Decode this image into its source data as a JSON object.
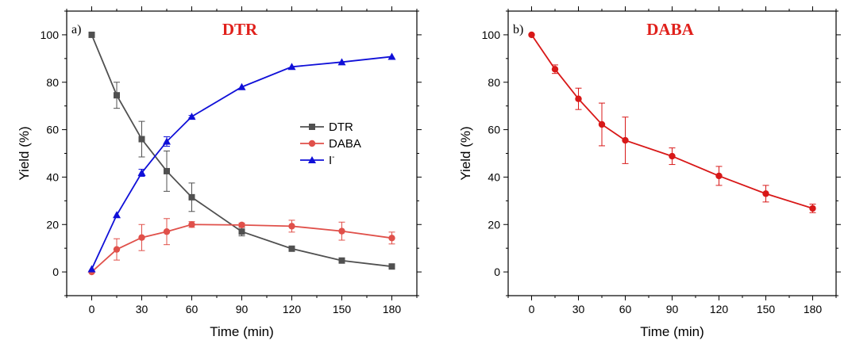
{
  "chart_data": [
    {
      "type": "line",
      "panel_label": "a)",
      "title": "DTR",
      "title_color": "#e0201b",
      "xlabel": "Time (min)",
      "ylabel": "Yield (%)",
      "xlim": [
        -15,
        195
      ],
      "ylim": [
        -10,
        110
      ],
      "xticks": [
        0,
        30,
        60,
        90,
        120,
        150,
        180
      ],
      "xtick_labels": [
        "0",
        "30",
        "60",
        "90",
        "120",
        "150",
        "180"
      ],
      "yticks": [
        0,
        20,
        40,
        60,
        80,
        100
      ],
      "ytick_labels": [
        "0",
        "20",
        "40",
        "60",
        "80",
        "100"
      ],
      "grid": false,
      "legend_position": "center-right",
      "x": [
        0,
        15,
        30,
        45,
        60,
        90,
        120,
        150,
        180
      ],
      "series": [
        {
          "name": "DTR",
          "color": "#505050",
          "marker": "square",
          "values": [
            100,
            74.5,
            56,
            42.5,
            31.5,
            17,
            9.8,
            4.8,
            2.3
          ],
          "errors": [
            0,
            5.5,
            7.5,
            8.5,
            6,
            1.8,
            0,
            0,
            0
          ]
        },
        {
          "name": "DABA",
          "color": "#e0504a",
          "marker": "circle",
          "values": [
            0,
            9.5,
            14.5,
            17,
            20,
            19.8,
            19.3,
            17.2,
            14.3
          ],
          "errors": [
            0,
            4.5,
            5.5,
            5.5,
            1.2,
            0.8,
            2.5,
            3.8,
            2.5
          ]
        },
        {
          "name": "I",
          "name_superscript": "-",
          "color": "#1010d8",
          "marker": "triangle",
          "values": [
            1.2,
            24,
            41.8,
            55,
            65.5,
            78,
            86.5,
            88.5,
            90.8
          ],
          "errors": [
            0,
            0,
            1.5,
            2,
            0.5,
            0,
            0,
            0,
            0
          ]
        }
      ]
    },
    {
      "type": "line",
      "panel_label": "b)",
      "title": "DABA",
      "title_color": "#e0201b",
      "xlabel": "Time (min)",
      "ylabel": "Yield (%)",
      "xlim": [
        -15,
        195
      ],
      "ylim": [
        -10,
        110
      ],
      "xticks": [
        0,
        30,
        60,
        90,
        120,
        150,
        180
      ],
      "xtick_labels": [
        "0",
        "30",
        "60",
        "90",
        "120",
        "150",
        "180"
      ],
      "yticks": [
        0,
        20,
        40,
        60,
        80,
        100
      ],
      "ytick_labels": [
        "0",
        "20",
        "40",
        "60",
        "80",
        "100"
      ],
      "grid": false,
      "x": [
        0,
        15,
        30,
        45,
        60,
        90,
        120,
        150,
        180
      ],
      "series": [
        {
          "color": "#d81818",
          "marker": "circle",
          "values": [
            100,
            85.5,
            73,
            62.2,
            55.5,
            48.8,
            40.5,
            33,
            26.8
          ],
          "errors": [
            0,
            1.8,
            4.5,
            9,
            9.8,
            3.5,
            4,
            3.5,
            1.8
          ]
        }
      ]
    }
  ]
}
